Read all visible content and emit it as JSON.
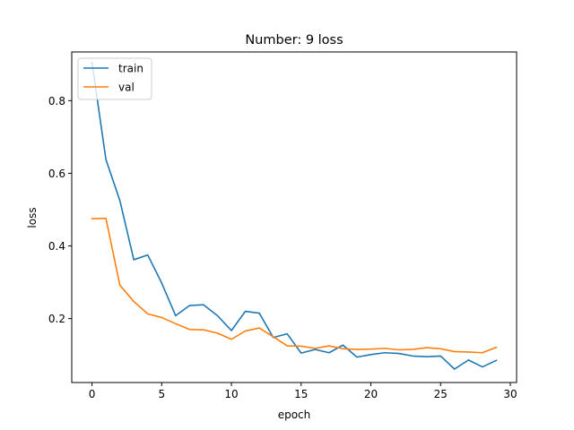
{
  "chart_data": {
    "type": "line",
    "title": "Number: 9 loss",
    "xlabel": "epoch",
    "ylabel": "loss",
    "xlim": [
      -1.45,
      30.45
    ],
    "ylim": [
      0.024,
      0.934
    ],
    "x_ticks": [
      0,
      5,
      10,
      15,
      20,
      25,
      30
    ],
    "y_ticks": [
      0.2,
      0.4,
      0.6,
      0.8
    ],
    "x_tick_labels": [
      "0",
      "5",
      "10",
      "15",
      "20",
      "25",
      "30"
    ],
    "y_tick_labels": [
      "0.2",
      "0.4",
      "0.6",
      "0.8"
    ],
    "grid": false,
    "legend_position": "top-left",
    "x": [
      0,
      1,
      2,
      3,
      4,
      5,
      6,
      7,
      8,
      9,
      10,
      11,
      12,
      13,
      14,
      15,
      16,
      17,
      18,
      19,
      20,
      21,
      22,
      23,
      24,
      25,
      26,
      27,
      28,
      29
    ],
    "series": [
      {
        "name": "train",
        "color": "#1f77b4",
        "values": [
          0.905,
          0.638,
          0.525,
          0.362,
          0.375,
          0.298,
          0.208,
          0.236,
          0.238,
          0.208,
          0.167,
          0.22,
          0.215,
          0.148,
          0.158,
          0.105,
          0.115,
          0.106,
          0.127,
          0.094,
          0.101,
          0.106,
          0.104,
          0.097,
          0.095,
          0.097,
          0.061,
          0.086,
          0.067,
          0.085
        ]
      },
      {
        "name": "val",
        "color": "#ff7f0e",
        "values": [
          0.475,
          0.476,
          0.292,
          0.247,
          0.213,
          0.203,
          0.186,
          0.17,
          0.169,
          0.16,
          0.143,
          0.166,
          0.174,
          0.15,
          0.125,
          0.124,
          0.118,
          0.125,
          0.117,
          0.115,
          0.116,
          0.118,
          0.114,
          0.115,
          0.12,
          0.117,
          0.109,
          0.108,
          0.106,
          0.121
        ]
      }
    ]
  }
}
